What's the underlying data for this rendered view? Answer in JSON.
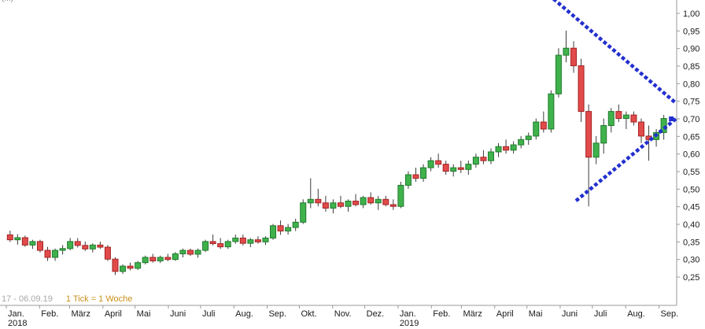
{
  "title_partial": "(...)",
  "chart_data": {
    "type": "candlestick",
    "title": "",
    "footer": {
      "date_range": "17 - 06.09.19",
      "tick_info": "1 Tick = 1 Woche"
    },
    "grid": false,
    "y_axis": {
      "position": "right",
      "min": 0.25,
      "max": 1.0,
      "step": 0.05,
      "decimal_style": "comma",
      "tick_labels": [
        "1,00",
        "0,95",
        "0,90",
        "0,85",
        "0,80",
        "0,75",
        "0,70",
        "0,65",
        "0,60",
        "0,55",
        "0,50",
        "0,45",
        "0,40",
        "0,35",
        "0,30",
        "0,25"
      ]
    },
    "x_axis": {
      "unit": "weeks",
      "months": [
        {
          "label": "Jan.",
          "week": 0,
          "year": "2018"
        },
        {
          "label": "Feb.",
          "week": 4.43
        },
        {
          "label": "März",
          "week": 8.43
        },
        {
          "label": "April",
          "week": 12.86
        },
        {
          "label": "Mai",
          "week": 17.14
        },
        {
          "label": "Juni",
          "week": 21.57
        },
        {
          "label": "Juli",
          "week": 25.86
        },
        {
          "label": "Aug.",
          "week": 30.29
        },
        {
          "label": "Sep.",
          "week": 34.71
        },
        {
          "label": "Okt.",
          "week": 39.0
        },
        {
          "label": "Nov.",
          "week": 43.43
        },
        {
          "label": "Dez.",
          "week": 47.71
        },
        {
          "label": "Jan.",
          "week": 52.14,
          "year": "2019"
        },
        {
          "label": "Feb.",
          "week": 56.57
        },
        {
          "label": "März",
          "week": 60.57
        },
        {
          "label": "April",
          "week": 65.0
        },
        {
          "label": "Mai",
          "week": 69.29
        },
        {
          "label": "Juni",
          "week": 73.71
        },
        {
          "label": "Juli",
          "week": 78.0
        },
        {
          "label": "Aug.",
          "week": 82.43
        },
        {
          "label": "Sep.",
          "week": 86.86
        }
      ]
    },
    "candles": [
      [
        0.37,
        0.382,
        0.35,
        0.356
      ],
      [
        0.356,
        0.372,
        0.342,
        0.362
      ],
      [
        0.362,
        0.368,
        0.336,
        0.341
      ],
      [
        0.341,
        0.356,
        0.33,
        0.351
      ],
      [
        0.351,
        0.356,
        0.32,
        0.326
      ],
      [
        0.326,
        0.336,
        0.296,
        0.306
      ],
      [
        0.306,
        0.331,
        0.296,
        0.326
      ],
      [
        0.326,
        0.341,
        0.314,
        0.331
      ],
      [
        0.331,
        0.361,
        0.326,
        0.351
      ],
      [
        0.351,
        0.361,
        0.334,
        0.34
      ],
      [
        0.34,
        0.351,
        0.324,
        0.33
      ],
      [
        0.33,
        0.346,
        0.32,
        0.341
      ],
      [
        0.341,
        0.351,
        0.33,
        0.335
      ],
      [
        0.335,
        0.341,
        0.296,
        0.301
      ],
      [
        0.301,
        0.306,
        0.256,
        0.266
      ],
      [
        0.266,
        0.286,
        0.259,
        0.281
      ],
      [
        0.281,
        0.291,
        0.269,
        0.275
      ],
      [
        0.275,
        0.296,
        0.27,
        0.291
      ],
      [
        0.291,
        0.311,
        0.286,
        0.306
      ],
      [
        0.306,
        0.316,
        0.291,
        0.296
      ],
      [
        0.296,
        0.311,
        0.29,
        0.306
      ],
      [
        0.306,
        0.316,
        0.295,
        0.3
      ],
      [
        0.3,
        0.321,
        0.296,
        0.316
      ],
      [
        0.316,
        0.331,
        0.306,
        0.326
      ],
      [
        0.326,
        0.331,
        0.31,
        0.315
      ],
      [
        0.315,
        0.331,
        0.305,
        0.326
      ],
      [
        0.326,
        0.356,
        0.321,
        0.351
      ],
      [
        0.351,
        0.371,
        0.34,
        0.345
      ],
      [
        0.345,
        0.361,
        0.33,
        0.336
      ],
      [
        0.336,
        0.356,
        0.33,
        0.351
      ],
      [
        0.351,
        0.371,
        0.345,
        0.361
      ],
      [
        0.361,
        0.371,
        0.34,
        0.346
      ],
      [
        0.346,
        0.361,
        0.335,
        0.356
      ],
      [
        0.356,
        0.366,
        0.345,
        0.35
      ],
      [
        0.35,
        0.366,
        0.341,
        0.361
      ],
      [
        0.361,
        0.401,
        0.356,
        0.396
      ],
      [
        0.396,
        0.411,
        0.37,
        0.381
      ],
      [
        0.381,
        0.401,
        0.371,
        0.391
      ],
      [
        0.391,
        0.416,
        0.381,
        0.406
      ],
      [
        0.406,
        0.471,
        0.401,
        0.461
      ],
      [
        0.461,
        0.531,
        0.446,
        0.471
      ],
      [
        0.471,
        0.501,
        0.451,
        0.461
      ],
      [
        0.461,
        0.481,
        0.436,
        0.446
      ],
      [
        0.446,
        0.471,
        0.431,
        0.461
      ],
      [
        0.461,
        0.481,
        0.446,
        0.451
      ],
      [
        0.451,
        0.471,
        0.436,
        0.466
      ],
      [
        0.466,
        0.486,
        0.451,
        0.456
      ],
      [
        0.456,
        0.481,
        0.446,
        0.476
      ],
      [
        0.476,
        0.491,
        0.456,
        0.461
      ],
      [
        0.461,
        0.481,
        0.441,
        0.471
      ],
      [
        0.471,
        0.481,
        0.451,
        0.456
      ],
      [
        0.456,
        0.471,
        0.441,
        0.451
      ],
      [
        0.451,
        0.521,
        0.446,
        0.511
      ],
      [
        0.511,
        0.551,
        0.501,
        0.541
      ],
      [
        0.541,
        0.561,
        0.521,
        0.531
      ],
      [
        0.531,
        0.571,
        0.521,
        0.561
      ],
      [
        0.561,
        0.591,
        0.551,
        0.581
      ],
      [
        0.581,
        0.601,
        0.561,
        0.571
      ],
      [
        0.571,
        0.581,
        0.541,
        0.551
      ],
      [
        0.551,
        0.571,
        0.536,
        0.561
      ],
      [
        0.561,
        0.581,
        0.546,
        0.556
      ],
      [
        0.556,
        0.581,
        0.541,
        0.571
      ],
      [
        0.571,
        0.601,
        0.561,
        0.591
      ],
      [
        0.591,
        0.611,
        0.571,
        0.581
      ],
      [
        0.581,
        0.616,
        0.571,
        0.606
      ],
      [
        0.606,
        0.631,
        0.591,
        0.621
      ],
      [
        0.621,
        0.641,
        0.601,
        0.611
      ],
      [
        0.611,
        0.636,
        0.601,
        0.626
      ],
      [
        0.626,
        0.651,
        0.616,
        0.641
      ],
      [
        0.641,
        0.661,
        0.626,
        0.651
      ],
      [
        0.651,
        0.701,
        0.641,
        0.691
      ],
      [
        0.691,
        0.721,
        0.661,
        0.671
      ],
      [
        0.671,
        0.781,
        0.661,
        0.771
      ],
      [
        0.771,
        0.901,
        0.761,
        0.881
      ],
      [
        0.881,
        0.951,
        0.861,
        0.901
      ],
      [
        0.901,
        0.921,
        0.831,
        0.851
      ],
      [
        0.851,
        0.871,
        0.691,
        0.721
      ],
      [
        0.721,
        0.741,
        0.451,
        0.591
      ],
      [
        0.591,
        0.651,
        0.571,
        0.631
      ],
      [
        0.631,
        0.701,
        0.601,
        0.681
      ],
      [
        0.681,
        0.731,
        0.661,
        0.721
      ],
      [
        0.721,
        0.741,
        0.691,
        0.701
      ],
      [
        0.701,
        0.721,
        0.671,
        0.711
      ],
      [
        0.711,
        0.721,
        0.681,
        0.691
      ],
      [
        0.691,
        0.701,
        0.631,
        0.651
      ],
      [
        0.651,
        0.681,
        0.581,
        0.641
      ],
      [
        0.641,
        0.671,
        0.621,
        0.661
      ],
      [
        0.661,
        0.711,
        0.641,
        0.701
      ]
    ],
    "trendlines": [
      {
        "name": "triangle-upper-trendline",
        "from_week": 72.5,
        "from_price": 1.038,
        "to_week": 88.6,
        "to_price": 0.745
      },
      {
        "name": "triangle-lower-trendline",
        "from_week": 75.5,
        "from_price": 0.47,
        "to_week": 88.6,
        "to_price": 0.7
      }
    ],
    "marker": {
      "week": 88.0,
      "price": 0.7
    },
    "colors": {
      "up": "#40b24c",
      "up_border": "#1f7a2b",
      "down": "#e24b4b",
      "down_border": "#a32222",
      "wick": "#3c3c3c",
      "trend": "#2330cf",
      "marker": "#2330cf",
      "axis": "#9a9a9a",
      "label": "#1a1a1a"
    }
  }
}
